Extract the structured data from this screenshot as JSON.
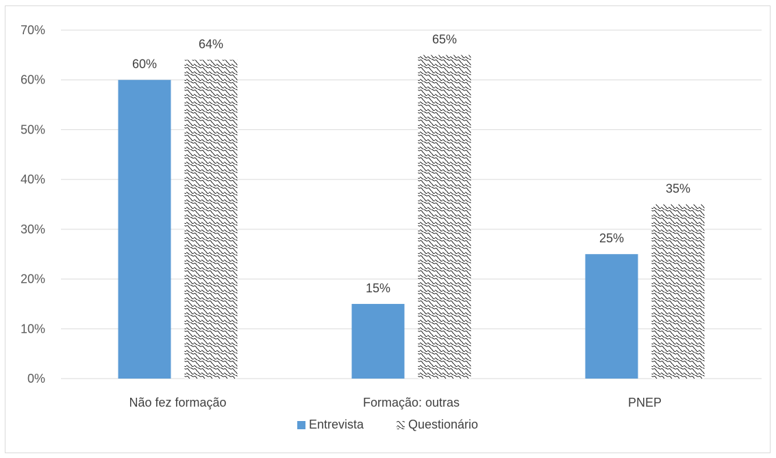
{
  "chart_data": {
    "type": "bar",
    "categories": [
      "Não fez formação",
      "Formação: outras",
      "PNEP"
    ],
    "series": [
      {
        "name": "Entrevista",
        "values": [
          60,
          15,
          25
        ],
        "color": "#5b9bd5",
        "fill": "solid"
      },
      {
        "name": "Questionário",
        "values": [
          64,
          65,
          35
        ],
        "color": "#000000",
        "fill": "wave-pattern"
      }
    ],
    "value_suffix": "%",
    "ylim": [
      0,
      70
    ],
    "yticks": [
      0,
      10,
      20,
      30,
      40,
      50,
      60,
      70
    ],
    "ytick_labels": [
      "0%",
      "10%",
      "20%",
      "30%",
      "40%",
      "50%",
      "60%",
      "70%"
    ],
    "title": "",
    "xlabel": "",
    "ylabel": "",
    "grid": true,
    "legend_position": "bottom"
  }
}
